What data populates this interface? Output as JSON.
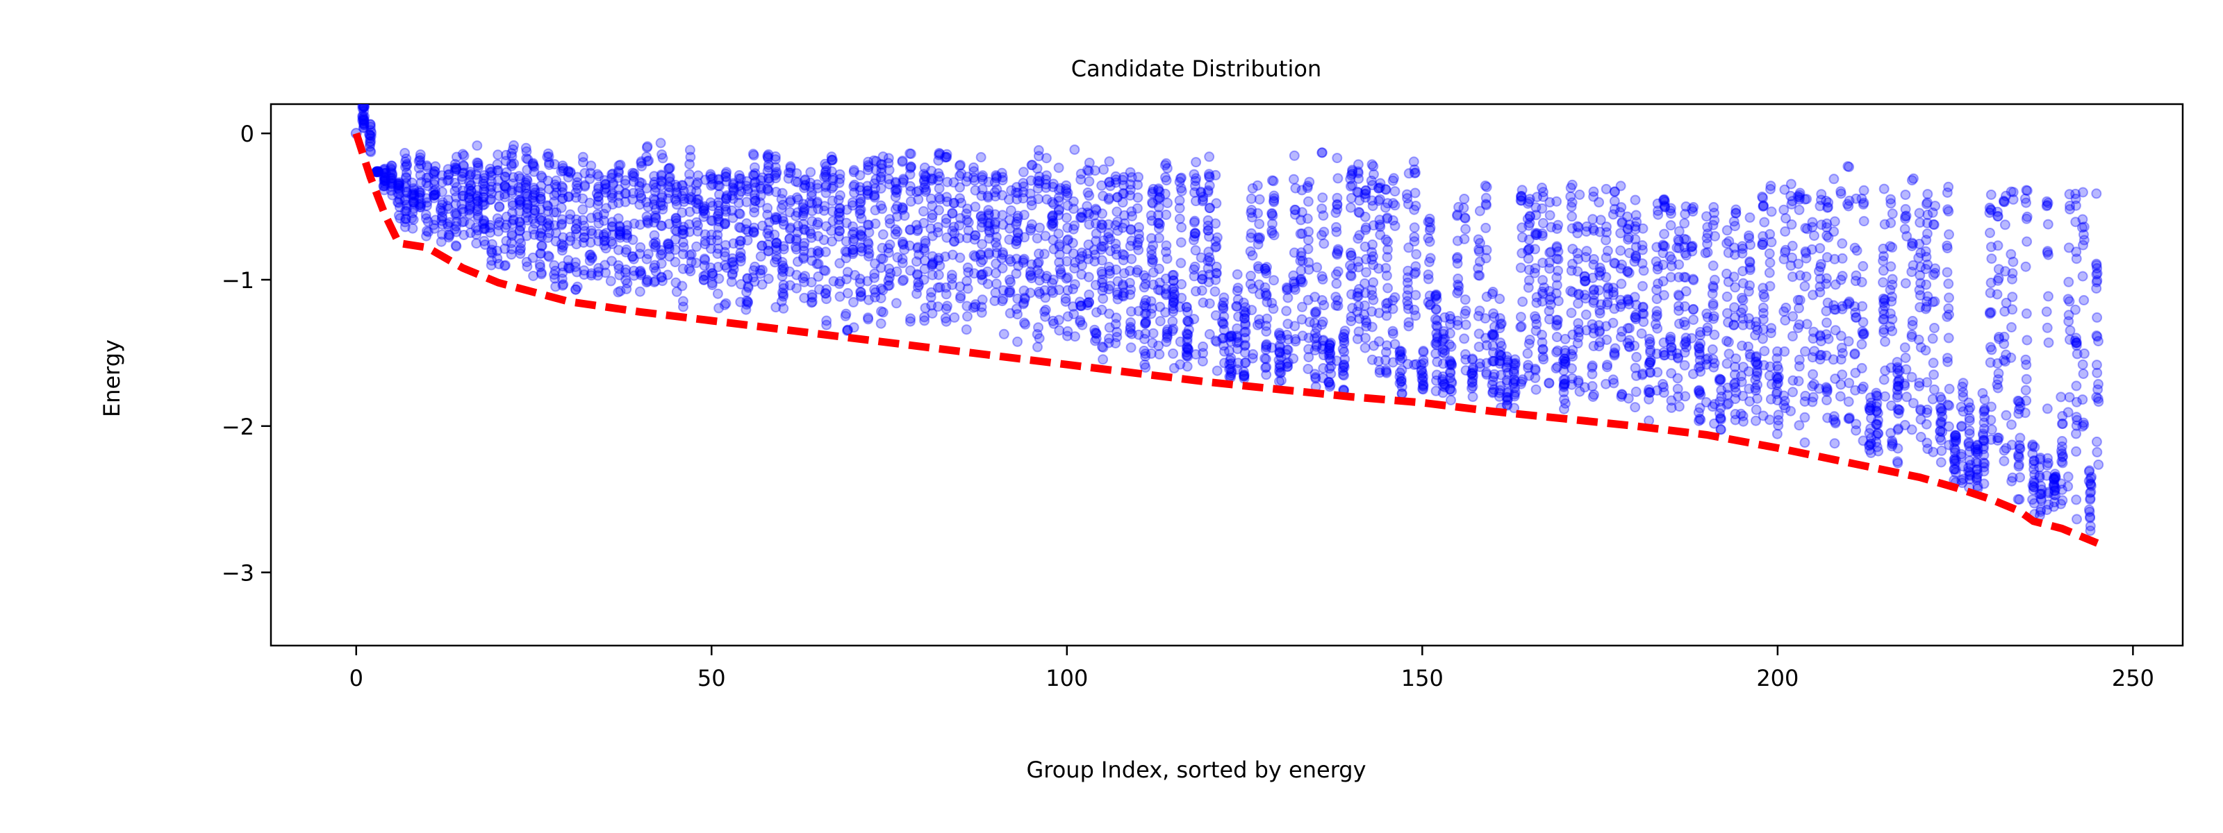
{
  "chart_data": {
    "type": "scatter",
    "title": "Candidate Distribution",
    "xlabel": "Group Index, sorted by energy",
    "ylabel": "Energy",
    "xlim": [
      -12,
      257
    ],
    "ylim": [
      -3.5,
      0.2
    ],
    "xticks": [
      0,
      50,
      100,
      150,
      200,
      250
    ],
    "xtick_labels": [
      "0",
      "50",
      "100",
      "150",
      "200",
      "250"
    ],
    "yticks": [
      0,
      -1,
      -2,
      -3
    ],
    "ytick_labels": [
      "0",
      "−1",
      "−2",
      "−3"
    ],
    "grid": false,
    "colors": {
      "scatter": "#0000ff",
      "min_line": "#ff0000"
    },
    "series": [
      {
        "type": "scatter",
        "description_ranges": [
          {
            "x": [
              0,
              0
            ],
            "y_min": 0.0,
            "y_max": 0.0
          },
          {
            "x": [
              1,
              10
            ],
            "y_min": -0.75,
            "y_max": -0.1
          },
          {
            "x": [
              11,
              50
            ],
            "y_min": -1.25,
            "y_max": -0.05
          },
          {
            "x": [
              51,
              100
            ],
            "y_min": -1.55,
            "y_max": -0.1
          },
          {
            "x": [
              101,
              150
            ],
            "y_min": -1.8,
            "y_max": -0.1
          },
          {
            "x": [
              151,
              200
            ],
            "y_min": -2.2,
            "y_max": -0.3
          },
          {
            "x": [
              201,
              245
            ],
            "y_min": -2.7,
            "y_max": -0.2
          }
        ]
      },
      {
        "type": "line",
        "style": "dashed",
        "x": [
          0,
          2,
          4,
          6,
          10,
          15,
          20,
          30,
          40,
          50,
          60,
          70,
          80,
          90,
          100,
          110,
          120,
          130,
          140,
          150,
          160,
          170,
          180,
          190,
          200,
          210,
          220,
          225,
          230,
          234,
          236,
          240,
          245
        ],
        "y": [
          0.0,
          -0.3,
          -0.55,
          -0.75,
          -0.78,
          -0.92,
          -1.02,
          -1.15,
          -1.22,
          -1.28,
          -1.34,
          -1.4,
          -1.46,
          -1.52,
          -1.58,
          -1.64,
          -1.7,
          -1.75,
          -1.8,
          -1.84,
          -1.9,
          -1.95,
          -2.0,
          -2.06,
          -2.15,
          -2.25,
          -2.35,
          -2.42,
          -2.5,
          -2.58,
          -2.65,
          -2.7,
          -2.8
        ]
      }
    ]
  }
}
